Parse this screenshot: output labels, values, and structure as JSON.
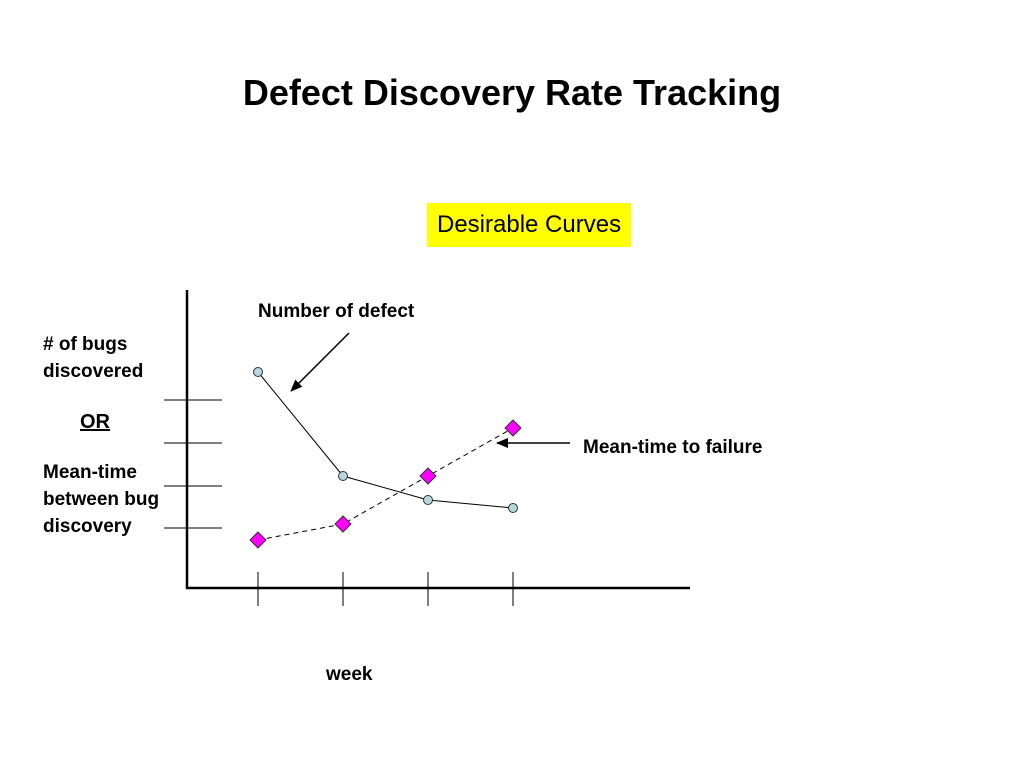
{
  "slide": {
    "title": "Defect Discovery Rate Tracking",
    "badge": "Desirable Curves",
    "badge_color": "#ffff00"
  },
  "chart_data": {
    "type": "line",
    "title": "",
    "xlabel": "week",
    "ylabel_top": "# of bugs discovered",
    "ylabel_or": "OR",
    "ylabel_bottom": "Mean-time between bug discovery",
    "grid": false,
    "x": [
      1,
      2,
      3,
      4
    ],
    "series": [
      {
        "name": "Number of defect",
        "values": [
          5.4,
          2.8,
          2.2,
          2.0
        ],
        "marker": "circle",
        "line": "solid",
        "marker_color": "#b7d7db",
        "line_color": "#000000"
      },
      {
        "name": "Mean-time to failure",
        "values": [
          1.2,
          1.6,
          2.8,
          4.0
        ],
        "marker": "diamond",
        "line": "dashed",
        "marker_color": "#ff00ff",
        "line_color": "#000000"
      }
    ],
    "annotations": [
      {
        "text": "Number of defect",
        "series": 0
      },
      {
        "text": "Mean-time to failure",
        "series": 1
      }
    ]
  }
}
